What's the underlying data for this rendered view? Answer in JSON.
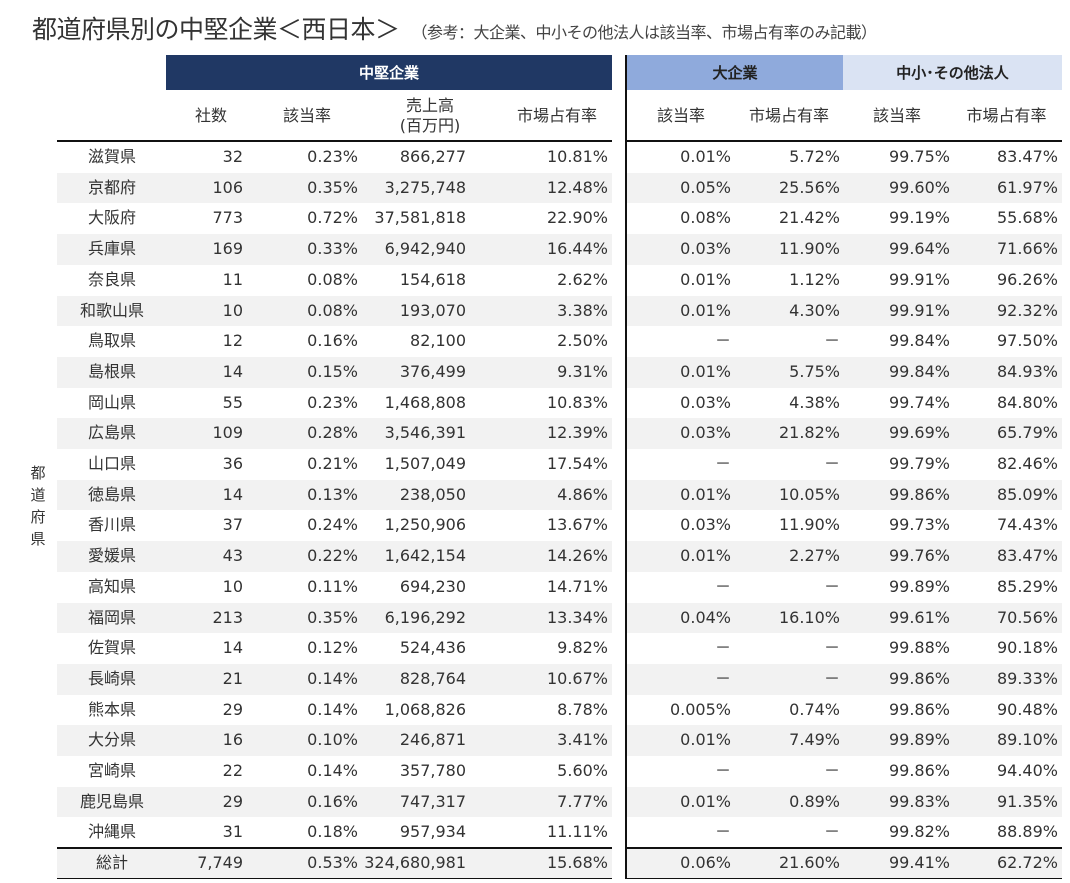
{
  "title": "都道府県別の中堅企業＜西日本＞",
  "subtitle": "（参考：大企業、中小その他法人は該当率、市場占有率のみ記載）",
  "row_group_label": "都道府県",
  "groups": {
    "mid": "中堅企業",
    "large": "大企業",
    "small": "中小･その他法人"
  },
  "columns": {
    "count": "社数",
    "rate": "該当率",
    "sales_line1": "売上高",
    "sales_line2": "(百万円)",
    "share": "市場占有率",
    "l_rate": "該当率",
    "l_share": "市場占有率",
    "s_rate": "該当率",
    "s_share": "市場占有率"
  },
  "colors": {
    "mid": "#203864",
    "large": "#8faadc",
    "small": "#dae3f3",
    "stripe": "#f2f2f2"
  },
  "rows": [
    [
      "滋賀県",
      "32",
      "0.23%",
      "866,277",
      "10.81%",
      "0.01%",
      "5.72%",
      "99.75%",
      "83.47%"
    ],
    [
      "京都府",
      "106",
      "0.35%",
      "3,275,748",
      "12.48%",
      "0.05%",
      "25.56%",
      "99.60%",
      "61.97%"
    ],
    [
      "大阪府",
      "773",
      "0.72%",
      "37,581,818",
      "22.90%",
      "0.08%",
      "21.42%",
      "99.19%",
      "55.68%"
    ],
    [
      "兵庫県",
      "169",
      "0.33%",
      "6,942,940",
      "16.44%",
      "0.03%",
      "11.90%",
      "99.64%",
      "71.66%"
    ],
    [
      "奈良県",
      "11",
      "0.08%",
      "154,618",
      "2.62%",
      "0.01%",
      "1.12%",
      "99.91%",
      "96.26%"
    ],
    [
      "和歌山県",
      "10",
      "0.08%",
      "193,070",
      "3.38%",
      "0.01%",
      "4.30%",
      "99.91%",
      "92.32%"
    ],
    [
      "鳥取県",
      "12",
      "0.16%",
      "82,100",
      "2.50%",
      "－",
      "－",
      "99.84%",
      "97.50%"
    ],
    [
      "島根県",
      "14",
      "0.15%",
      "376,499",
      "9.31%",
      "0.01%",
      "5.75%",
      "99.84%",
      "84.93%"
    ],
    [
      "岡山県",
      "55",
      "0.23%",
      "1,468,808",
      "10.83%",
      "0.03%",
      "4.38%",
      "99.74%",
      "84.80%"
    ],
    [
      "広島県",
      "109",
      "0.28%",
      "3,546,391",
      "12.39%",
      "0.03%",
      "21.82%",
      "99.69%",
      "65.79%"
    ],
    [
      "山口県",
      "36",
      "0.21%",
      "1,507,049",
      "17.54%",
      "－",
      "－",
      "99.79%",
      "82.46%"
    ],
    [
      "徳島県",
      "14",
      "0.13%",
      "238,050",
      "4.86%",
      "0.01%",
      "10.05%",
      "99.86%",
      "85.09%"
    ],
    [
      "香川県",
      "37",
      "0.24%",
      "1,250,906",
      "13.67%",
      "0.03%",
      "11.90%",
      "99.73%",
      "74.43%"
    ],
    [
      "愛媛県",
      "43",
      "0.22%",
      "1,642,154",
      "14.26%",
      "0.01%",
      "2.27%",
      "99.76%",
      "83.47%"
    ],
    [
      "高知県",
      "10",
      "0.11%",
      "694,230",
      "14.71%",
      "－",
      "－",
      "99.89%",
      "85.29%"
    ],
    [
      "福岡県",
      "213",
      "0.35%",
      "6,196,292",
      "13.34%",
      "0.04%",
      "16.10%",
      "99.61%",
      "70.56%"
    ],
    [
      "佐賀県",
      "14",
      "0.12%",
      "524,436",
      "9.82%",
      "－",
      "－",
      "99.88%",
      "90.18%"
    ],
    [
      "長崎県",
      "21",
      "0.14%",
      "828,764",
      "10.67%",
      "－",
      "－",
      "99.86%",
      "89.33%"
    ],
    [
      "熊本県",
      "29",
      "0.14%",
      "1,068,826",
      "8.78%",
      "0.005%",
      "0.74%",
      "99.86%",
      "90.48%"
    ],
    [
      "大分県",
      "16",
      "0.10%",
      "246,871",
      "3.41%",
      "0.01%",
      "7.49%",
      "99.89%",
      "89.10%"
    ],
    [
      "宮崎県",
      "22",
      "0.14%",
      "357,780",
      "5.60%",
      "－",
      "－",
      "99.86%",
      "94.40%"
    ],
    [
      "鹿児島県",
      "29",
      "0.16%",
      "747,317",
      "7.77%",
      "0.01%",
      "0.89%",
      "99.83%",
      "91.35%"
    ],
    [
      "沖縄県",
      "31",
      "0.18%",
      "957,934",
      "11.11%",
      "－",
      "－",
      "99.82%",
      "88.89%"
    ]
  ],
  "total": [
    "総計",
    "7,749",
    "0.53%",
    "324,680,981",
    "15.68%",
    "0.06%",
    "21.60%",
    "99.41%",
    "62.72%"
  ]
}
